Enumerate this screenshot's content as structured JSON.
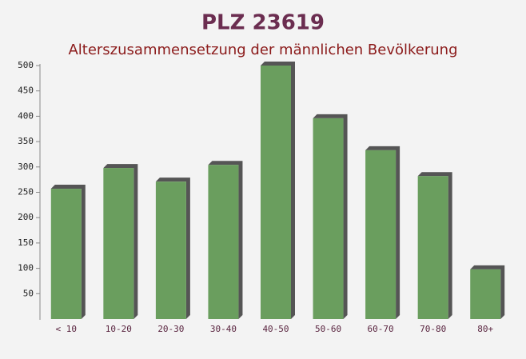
{
  "chart_data": {
    "type": "bar",
    "title": "PLZ 23619",
    "subtitle": "Alterszusammensetzung der männlichen Bevölkerung",
    "categories": [
      "< 10",
      "10-20",
      "20-30",
      "30-40",
      "40-50",
      "50-60",
      "60-70",
      "70-80",
      "80+"
    ],
    "values": [
      257,
      298,
      271,
      304,
      500,
      396,
      333,
      282,
      98
    ],
    "color": "#6a9e5e",
    "ylim": [
      0,
      500
    ],
    "yticks": [
      50,
      100,
      150,
      200,
      250,
      300,
      350,
      400,
      450,
      500
    ],
    "grid": false
  }
}
